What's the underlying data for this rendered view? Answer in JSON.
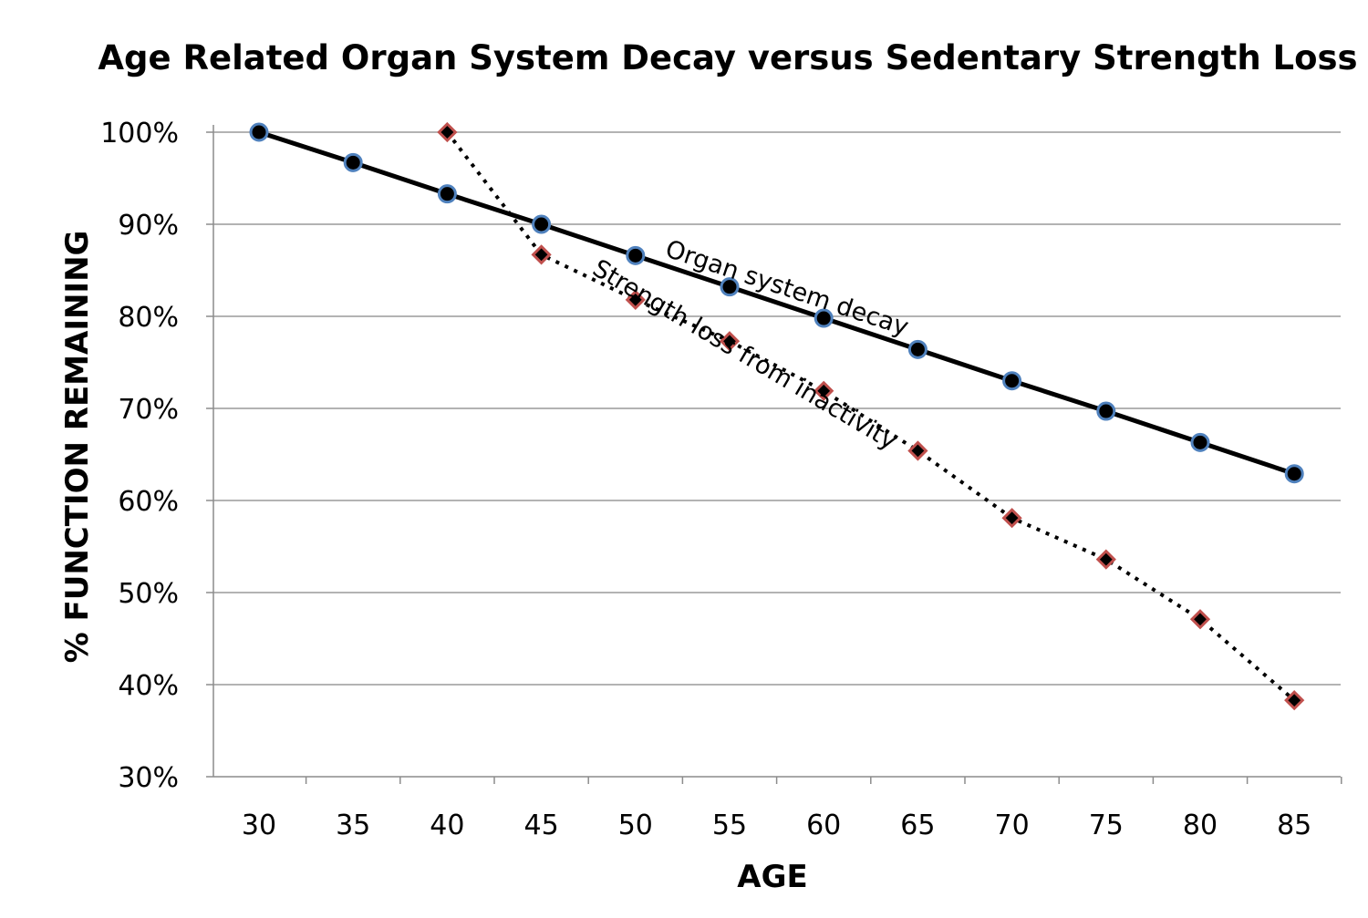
{
  "chart_data": {
    "type": "line",
    "title": "Age Related Organ System Decay versus Sedentary Strength Loss",
    "xlabel": "AGE",
    "ylabel": "% FUNCTION REMAINING",
    "x": [
      30,
      35,
      40,
      45,
      50,
      55,
      60,
      65,
      70,
      75,
      80,
      85
    ],
    "x_tick_labels": [
      "30",
      "35",
      "40",
      "45",
      "50",
      "55",
      "60",
      "65",
      "70",
      "75",
      "80",
      "85"
    ],
    "ylim": [
      0.3,
      1.0
    ],
    "y_ticks": [
      0.3,
      0.4,
      0.5,
      0.6,
      0.7,
      0.8,
      0.9,
      1.0
    ],
    "y_tick_labels": [
      "30%",
      "40%",
      "50%",
      "60%",
      "70%",
      "80%",
      "90%",
      "100%"
    ],
    "grid": "horizontal",
    "series": [
      {
        "marker": "circle",
        "line_style": "solid",
        "line_color": "#000000",
        "marker_fill": "#000000",
        "marker_edge": "#4f81bd",
        "x": [
          30,
          35,
          40,
          45,
          50,
          55,
          60,
          65,
          70,
          75,
          80,
          85
        ],
        "values": [
          1.0,
          0.967,
          0.933,
          0.9,
          0.866,
          0.832,
          0.798,
          0.764,
          0.73,
          0.697,
          0.663,
          0.629
        ]
      },
      {
        "marker": "diamond",
        "line_style": "dotted",
        "line_color": "#000000",
        "marker_fill": "#000000",
        "marker_edge": "#c0504d",
        "x": [
          40,
          45,
          50,
          55,
          60,
          65,
          70,
          75,
          80,
          85
        ],
        "values": [
          1.0,
          0.867,
          0.818,
          0.773,
          0.719,
          0.654,
          0.581,
          0.536,
          0.471,
          0.383
        ]
      }
    ],
    "annotations": [
      {
        "text": "Organ system decay",
        "series": 0
      },
      {
        "text": "Strength loss from inactivity",
        "series": 1
      }
    ]
  }
}
